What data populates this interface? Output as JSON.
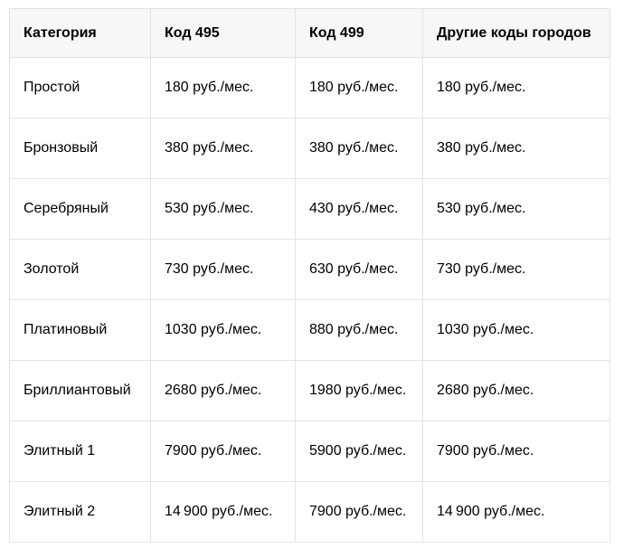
{
  "table": {
    "headers": [
      "Категория",
      "Код 495",
      "Код 499",
      "Другие коды городов"
    ],
    "rows": [
      [
        "Простой",
        "180 руб./мес.",
        "180 руб./мес.",
        "180 руб./мес."
      ],
      [
        "Бронзовый",
        "380 руб./мес.",
        "380 руб./мес.",
        "380 руб./мес."
      ],
      [
        "Серебряный",
        "530 руб./мес.",
        "430 руб./мес.",
        "530 руб./мес."
      ],
      [
        "Золотой",
        "730 руб./мес.",
        "630 руб./мес.",
        "730 руб./мес."
      ],
      [
        "Платиновый",
        "1030 руб./мес.",
        "880 руб./мес.",
        "1030 руб./мес."
      ],
      [
        "Бриллиантовый",
        "2680 руб./мес.",
        "1980 руб./мес.",
        "2680 руб./мес."
      ],
      [
        "Элитный 1",
        "7900 руб./мес.",
        "5900 руб./мес.",
        "7900 руб./мес."
      ],
      [
        "Элитный 2",
        "14 900 руб./мес.",
        "7900 руб./мес.",
        "14 900 руб./мес."
      ]
    ],
    "colors": {
      "header_background": "#f7f7f7",
      "border": "#e3e3e3",
      "text": "#000000",
      "body_background": "#ffffff"
    }
  }
}
